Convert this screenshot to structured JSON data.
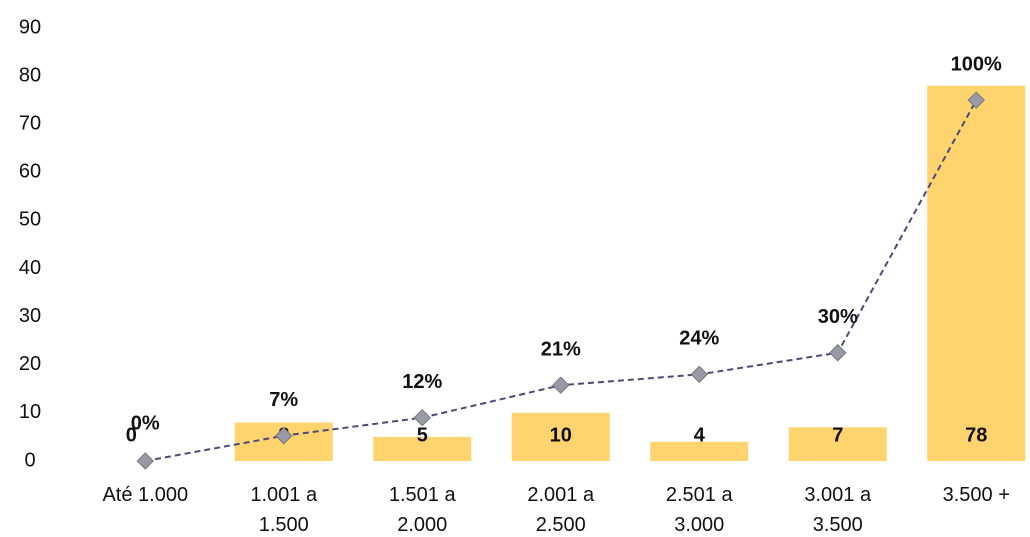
{
  "chart_data": {
    "type": "bar",
    "categories": [
      "Até 1.000",
      "1.001 a\n1.500",
      "1.501 a\n2.000",
      "2.001 a\n2.500",
      "2.501 a\n3.000",
      "3.001 a\n3.500",
      "3.500 +"
    ],
    "ylim": [
      0,
      90
    ],
    "yticks": [
      0,
      10,
      20,
      30,
      40,
      50,
      60,
      70,
      80,
      90
    ],
    "y2lim": [
      0,
      120
    ],
    "grid": false,
    "series": [
      {
        "type": "bar",
        "color": "#FFD36E",
        "values": [
          0,
          8,
          5,
          10,
          4,
          7,
          78
        ]
      },
      {
        "type": "line",
        "axis": "y2",
        "color": "#4d4a7a",
        "marker_color": "#9a9aa6",
        "values": [
          0,
          7,
          12,
          21,
          24,
          30,
          100
        ],
        "value_labels": [
          "0%",
          "7%",
          "12%",
          "21%",
          "24%",
          "30%",
          "100%"
        ]
      }
    ]
  }
}
